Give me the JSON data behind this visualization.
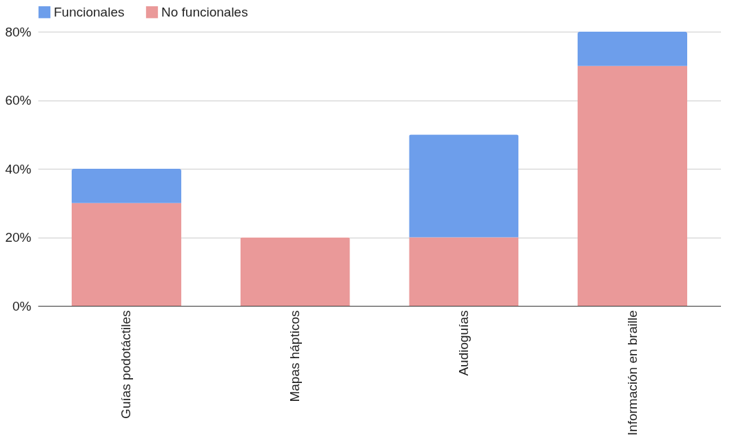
{
  "chart_data": {
    "type": "bar",
    "stacked": true,
    "categories": [
      "Guías podotáctiles",
      "Mapas hápticos",
      "Audioguías",
      "Información en braille"
    ],
    "series": [
      {
        "name": "No funcionales",
        "color": "#ea9999",
        "values": [
          30,
          20,
          20,
          70
        ]
      },
      {
        "name": "Funcionales",
        "color": "#6d9eeb",
        "values": [
          10,
          0,
          30,
          10
        ]
      }
    ],
    "ylim": [
      0,
      80
    ],
    "yticks": [
      {
        "value": 0,
        "label": "0%"
      },
      {
        "value": 20,
        "label": "20%"
      },
      {
        "value": 40,
        "label": "40%"
      },
      {
        "value": 60,
        "label": "60%"
      },
      {
        "value": 80,
        "label": "80%"
      }
    ],
    "grid": "y",
    "legend": "top"
  }
}
